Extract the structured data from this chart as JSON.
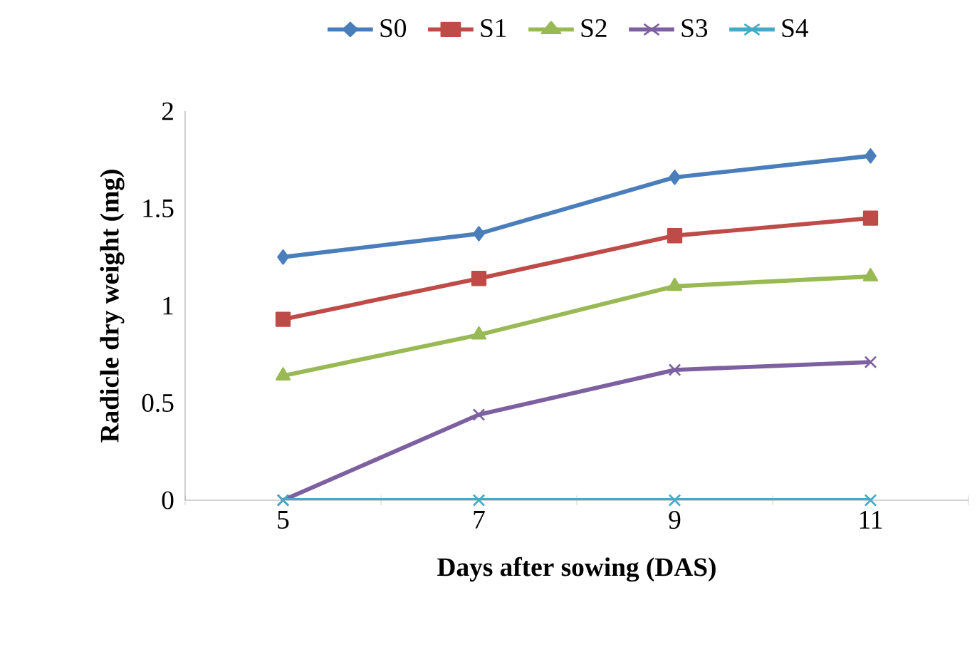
{
  "chart_data": {
    "type": "line",
    "xlabel": "Days after sowing (DAS)",
    "ylabel": "Radicle dry  weight (mg)",
    "categories": [
      "5",
      "7",
      "9",
      "11"
    ],
    "series": [
      {
        "name": "S0",
        "color": "#4a7ebb",
        "marker": "diamond",
        "values": [
          1.25,
          1.37,
          1.66,
          1.77
        ]
      },
      {
        "name": "S1",
        "color": "#be4b48",
        "marker": "square",
        "values": [
          0.93,
          1.14,
          1.36,
          1.45
        ]
      },
      {
        "name": "S2",
        "color": "#98b954",
        "marker": "triangle",
        "values": [
          0.64,
          0.85,
          1.1,
          1.15
        ]
      },
      {
        "name": "S3",
        "color": "#7d60a0",
        "marker": "cross",
        "values": [
          0,
          0.44,
          0.67,
          0.71
        ]
      },
      {
        "name": "S4",
        "color": "#46aac5",
        "marker": "cross",
        "values": [
          0,
          0,
          0,
          0
        ]
      }
    ],
    "ylim": [
      0,
      2
    ],
    "yticks": [
      0,
      0.5,
      1,
      1.5,
      2
    ],
    "grid": false,
    "legend": "top"
  }
}
